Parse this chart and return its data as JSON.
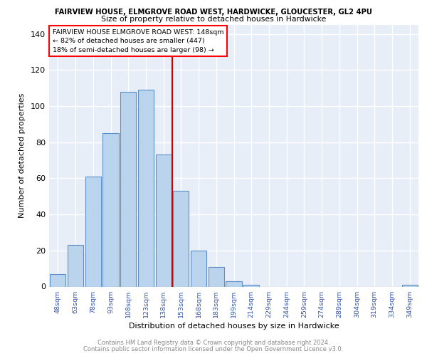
{
  "title1": "FAIRVIEW HOUSE, ELMGROVE ROAD WEST, HARDWICKE, GLOUCESTER, GL2 4PU",
  "title2": "Size of property relative to detached houses in Hardwicke",
  "xlabel": "Distribution of detached houses by size in Hardwicke",
  "ylabel": "Number of detached properties",
  "categories": [
    "48sqm",
    "63sqm",
    "78sqm",
    "93sqm",
    "108sqm",
    "123sqm",
    "138sqm",
    "153sqm",
    "168sqm",
    "183sqm",
    "199sqm",
    "214sqm",
    "229sqm",
    "244sqm",
    "259sqm",
    "274sqm",
    "289sqm",
    "304sqm",
    "319sqm",
    "334sqm",
    "349sqm"
  ],
  "values": [
    7,
    23,
    61,
    85,
    108,
    109,
    73,
    53,
    20,
    11,
    3,
    1,
    0,
    0,
    0,
    0,
    0,
    0,
    0,
    0,
    1
  ],
  "bar_color": "#bad4ee",
  "bar_edge_color": "#5b8fc9",
  "vline_color": "#cc0000",
  "annotation_lines": [
    "FAIRVIEW HOUSE ELMGROVE ROAD WEST: 148sqm",
    "← 82% of detached houses are smaller (447)",
    "18% of semi-detached houses are larger (98) →"
  ],
  "ylim": [
    0,
    145
  ],
  "yticks": [
    0,
    20,
    40,
    60,
    80,
    100,
    120,
    140
  ],
  "footer1": "Contains HM Land Registry data © Crown copyright and database right 2024.",
  "footer2": "Contains public sector information licensed under the Open Government Licence v3.0.",
  "bg_color": "#e8eef8"
}
